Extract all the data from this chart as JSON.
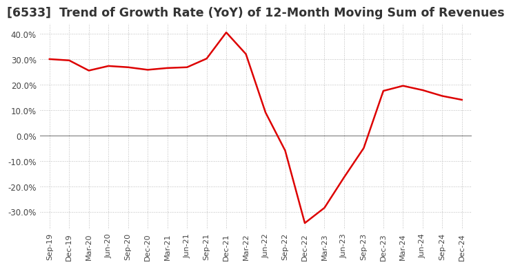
{
  "title": "[6533]  Trend of Growth Rate (YoY) of 12-Month Moving Sum of Revenues",
  "x_labels": [
    "Sep-19",
    "Dec-19",
    "Mar-20",
    "Jun-20",
    "Sep-20",
    "Dec-20",
    "Mar-21",
    "Jun-21",
    "Sep-21",
    "Dec-21",
    "Mar-22",
    "Jun-22",
    "Sep-22",
    "Dec-22",
    "Mar-23",
    "Jun-23",
    "Sep-23",
    "Dec-23",
    "Mar-24",
    "Jun-24",
    "Sep-24",
    "Dec-24"
  ],
  "y_values": [
    0.3,
    0.295,
    0.255,
    0.273,
    0.268,
    0.258,
    0.265,
    0.268,
    0.302,
    0.405,
    0.32,
    0.09,
    -0.06,
    -0.345,
    -0.285,
    -0.165,
    -0.05,
    0.175,
    0.195,
    0.178,
    0.155,
    0.14
  ],
  "line_color": "#dd0000",
  "background_color": "#ffffff",
  "grid_color": "#bbbbbb",
  "zero_line_color": "#888888",
  "ylim": [
    -0.37,
    0.44
  ],
  "yticks": [
    -0.3,
    -0.2,
    -0.1,
    0.0,
    0.1,
    0.2,
    0.3,
    0.4
  ],
  "title_fontsize": 12.5
}
